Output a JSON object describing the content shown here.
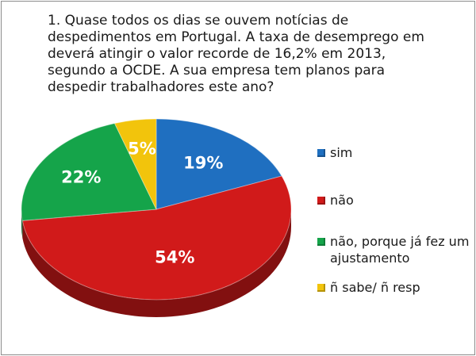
{
  "chart_data": {
    "type": "pie",
    "title": "1. Quase todos os dias se ouvem notícias de despedimentos em Portugal. A taxa de desemprego em deverá atingir o valor recorde de 16,2% em 2013, segundo a OCDE. A sua empresa tem planos para despedir trabalhadores este ano?",
    "slices": [
      {
        "label": "sim",
        "value": 19,
        "value_label": "19%",
        "color": "#1f6fc0"
      },
      {
        "label": "não",
        "value": 54,
        "value_label": "54%",
        "color": "#d11a1a"
      },
      {
        "label": "não, porque já fez um ajustamento",
        "value": 22,
        "value_label": "22%",
        "color": "#15a44a"
      },
      {
        "label": "ñ sabe/ ñ resp",
        "value": 5,
        "value_label": "5%",
        "color": "#f2c40c"
      }
    ],
    "legend_position": "right",
    "style": "3d"
  }
}
